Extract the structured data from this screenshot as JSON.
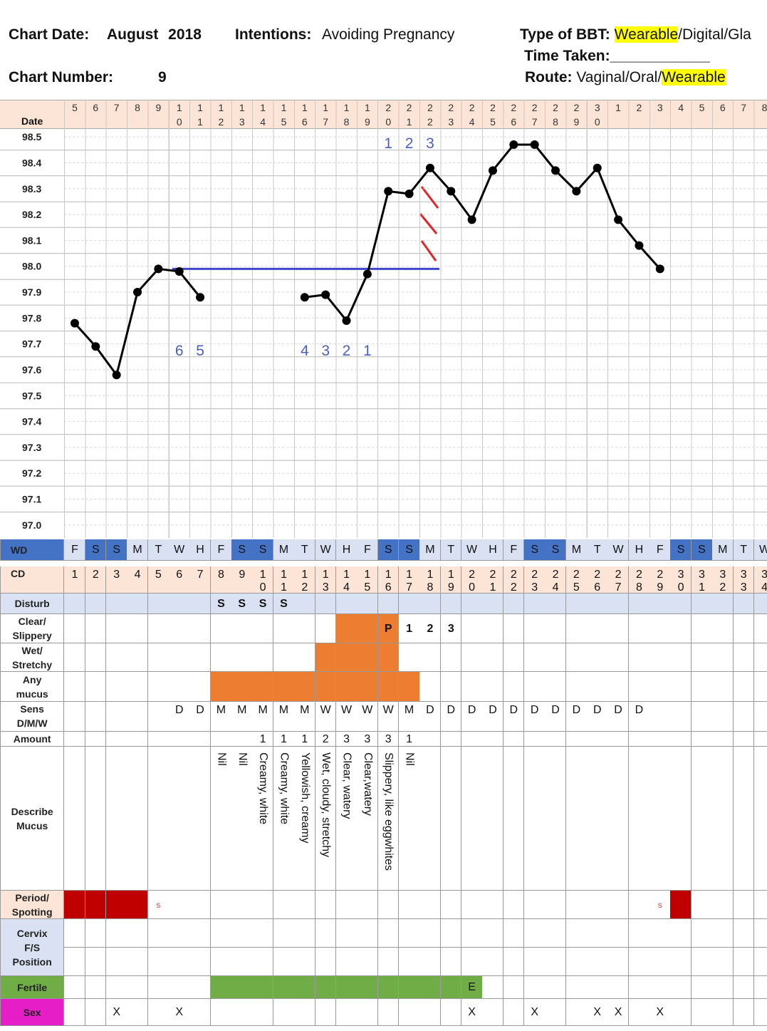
{
  "header": {
    "chart_date_label": "Chart Date:",
    "chart_date": "August 2018",
    "intentions_label": "Intentions:",
    "intentions": "Avoiding Pregnancy",
    "bbt_label": "Type of BBT:",
    "bbt_selected": "Wearable",
    "bbt_other": "/Digital/Gla",
    "time_taken": "Time Taken:____________",
    "chart_number_label": "Chart Number:",
    "chart_number": "9",
    "route_label": "Route:",
    "route_other": "Vaginal/Oral/",
    "route_selected": "Wearable",
    "highlight": "#ffff00"
  },
  "chart_data": {
    "type": "line",
    "x_label": "Date",
    "categories": [
      "5",
      "6",
      "7",
      "8",
      "9",
      "10",
      "11",
      "12",
      "13",
      "14",
      "15",
      "16",
      "17",
      "18",
      "19",
      "20",
      "21",
      "22",
      "23",
      "24",
      "25",
      "26",
      "27",
      "28",
      "29",
      "30",
      "1",
      "2",
      "3",
      "4",
      "5",
      "6",
      "7",
      "8"
    ],
    "series": [
      {
        "color": "#000000",
        "values": [
          97.78,
          97.69,
          97.58,
          97.9,
          97.99,
          97.98,
          97.88,
          null,
          null,
          null,
          null,
          97.88,
          97.89,
          97.79,
          97.97,
          98.29,
          98.28,
          98.38,
          98.29,
          98.18,
          98.37,
          98.47,
          98.47,
          98.37,
          98.29,
          98.38,
          98.18,
          98.08,
          97.99,
          null,
          null,
          null,
          null,
          null
        ]
      }
    ],
    "ylim": [
      96.95,
      98.55
    ],
    "yticks": [
      98.5,
      98.4,
      98.3,
      98.2,
      98.1,
      {
        "value": 98,
        "label": "98.0"
      },
      97.9,
      97.8,
      97.7,
      97.6,
      97.5,
      97.4,
      97.3,
      97.2,
      97.1,
      {
        "value": 97,
        "label": "97.0"
      }
    ],
    "grid": true,
    "coverline": {
      "value": 97.99,
      "color": "#3f48cc"
    },
    "low_count": [
      6,
      5,
      4,
      3,
      2,
      1
    ],
    "high_count": [
      1,
      2,
      3
    ],
    "count_color": "#4a5fc1"
  },
  "rows": [
    {
      "label": "WD",
      "label_fill": "#4472c4",
      "fill": "#d9e1f2",
      "cells": [
        "F",
        "S",
        "S",
        "M",
        "T",
        "W",
        "H",
        "F",
        "S",
        "S",
        "M",
        "T",
        "W",
        "H",
        "F",
        "S",
        "S",
        "M",
        "T",
        "W",
        "H",
        "F",
        "S",
        "S",
        "M",
        "T",
        "W",
        "H",
        "F",
        "S",
        "S",
        "M",
        "T",
        "W"
      ],
      "fills": [
        null,
        "#4472c4",
        "#4472c4",
        null,
        null,
        null,
        null,
        null,
        "#4472c4",
        "#4472c4",
        null,
        null,
        null,
        null,
        null,
        "#4472c4",
        "#4472c4",
        null,
        null,
        null,
        null,
        null,
        "#4472c4",
        "#4472c4",
        null,
        null,
        null,
        null,
        null,
        "#4472c4",
        "#4472c4",
        null,
        null,
        null
      ]
    },
    {
      "label": "CD",
      "label_fill": "#fce4d6",
      "fill": "#fce4d6",
      "cells": [
        1,
        2,
        3,
        4,
        5,
        6,
        7,
        8,
        9,
        10,
        11,
        12,
        13,
        14,
        15,
        16,
        17,
        18,
        19,
        20,
        21,
        22,
        23,
        24,
        25,
        26,
        27,
        28,
        29,
        30,
        31,
        32,
        33,
        34
      ]
    },
    {
      "label": "Disturb",
      "label_fill": "#d9e1f2",
      "fill": "#d9e1f2",
      "cells": [
        null,
        null,
        null,
        null,
        null,
        null,
        null,
        "S",
        "S",
        "S",
        "S",
        null,
        null,
        null,
        null,
        null,
        null,
        null,
        null,
        null,
        null,
        null,
        null,
        null,
        null,
        null,
        null,
        null,
        null,
        null,
        null,
        null,
        null,
        null
      ]
    },
    {
      "label": "Clear/\nSlippery",
      "cells": [
        null,
        null,
        null,
        null,
        null,
        null,
        null,
        null,
        null,
        null,
        null,
        null,
        null,
        null,
        null,
        "P",
        "1",
        "2",
        "3",
        null,
        null,
        null,
        null,
        null,
        null,
        null,
        null,
        null,
        null,
        null,
        null,
        null,
        null,
        null
      ],
      "fills": [
        null,
        null,
        null,
        null,
        null,
        null,
        null,
        null,
        null,
        null,
        null,
        null,
        null,
        "#ed7d31",
        "#ed7d31",
        "#ed7d31",
        null,
        null,
        null,
        null,
        null,
        null,
        null,
        null,
        null,
        null,
        null,
        null,
        null,
        null,
        null,
        null,
        null,
        null
      ]
    },
    {
      "label": "Wet/\nStretchy",
      "fills": [
        null,
        null,
        null,
        null,
        null,
        null,
        null,
        null,
        null,
        null,
        null,
        null,
        "#ed7d31",
        "#ed7d31",
        "#ed7d31",
        "#ed7d31",
        null,
        null,
        null,
        null,
        null,
        null,
        null,
        null,
        null,
        null,
        null,
        null,
        null,
        null,
        null,
        null,
        null,
        null
      ]
    },
    {
      "label": "Any\nmucus",
      "fills": [
        null,
        null,
        null,
        null,
        null,
        null,
        null,
        "#ed7d31",
        "#ed7d31",
        "#ed7d31",
        "#ed7d31",
        "#ed7d31",
        "#ed7d31",
        "#ed7d31",
        "#ed7d31",
        "#ed7d31",
        "#ed7d31",
        null,
        null,
        null,
        null,
        null,
        null,
        null,
        null,
        null,
        null,
        null,
        null,
        null,
        null,
        null,
        null,
        null
      ]
    },
    {
      "label": "Sens\nD/M/W",
      "cells": [
        null,
        null,
        null,
        null,
        null,
        "D",
        "D",
        "M",
        "M",
        "M",
        "M",
        "M",
        "W",
        "W",
        "W",
        "W",
        "M",
        "D",
        "D",
        "D",
        "D",
        "D",
        "D",
        "D",
        "D",
        "D",
        "D",
        "D",
        null,
        null,
        null,
        null,
        null,
        null
      ]
    },
    {
      "label": "Amount",
      "cells": [
        null,
        null,
        null,
        null,
        null,
        null,
        null,
        null,
        null,
        1,
        1,
        1,
        2,
        3,
        3,
        3,
        1,
        null,
        null,
        null,
        null,
        null,
        null,
        null,
        null,
        null,
        null,
        null,
        null,
        null,
        null,
        null,
        null,
        null
      ]
    },
    {
      "label": "Describe\nMucus",
      "cells": [
        null,
        null,
        null,
        null,
        null,
        null,
        null,
        "Nil",
        "Nil",
        "Creamy, white",
        "Creamy, white",
        "Yellowish, creamy",
        "Wet, cloudy, stretchy",
        "Clear, watery",
        "Clear,watery",
        "Slippery, like eggwhites",
        "Nil",
        null,
        null,
        null,
        null,
        null,
        null,
        null,
        null,
        null,
        null,
        null,
        null,
        null,
        null,
        null,
        null,
        null
      ]
    },
    {
      "label": "Period/\nSpotting",
      "label_fill": "#fce4d6",
      "color": "#c0504d",
      "cells": [
        null,
        null,
        null,
        null,
        "s",
        null,
        null,
        null,
        null,
        null,
        null,
        null,
        null,
        null,
        null,
        null,
        null,
        null,
        null,
        null,
        null,
        null,
        null,
        null,
        null,
        null,
        null,
        null,
        "s",
        null,
        null,
        null,
        null,
        null
      ],
      "fills": [
        "#c00000",
        "#c00000",
        "#c00000",
        "#c00000",
        null,
        null,
        null,
        null,
        null,
        null,
        null,
        null,
        null,
        null,
        null,
        null,
        null,
        null,
        null,
        null,
        null,
        null,
        null,
        null,
        null,
        null,
        null,
        null,
        null,
        "#c00000",
        null,
        null,
        null,
        null
      ]
    },
    {
      "label": "Cervix\nF/S\nPosition",
      "label_fill": "#d9e1f2"
    },
    {
      "label": "Fertile",
      "label_fill": "#70ad47",
      "cells": [
        null,
        null,
        null,
        null,
        null,
        null,
        null,
        null,
        null,
        null,
        null,
        null,
        null,
        null,
        null,
        null,
        null,
        null,
        null,
        "E",
        null,
        null,
        null,
        null,
        null,
        null,
        null,
        null,
        null,
        null,
        null,
        null,
        null,
        null
      ],
      "fills": [
        null,
        null,
        null,
        null,
        null,
        null,
        null,
        "#70ad47",
        "#70ad47",
        "#70ad47",
        "#70ad47",
        "#70ad47",
        "#70ad47",
        "#70ad47",
        "#70ad47",
        "#70ad47",
        "#70ad47",
        "#70ad47",
        "#70ad47",
        "#70ad47",
        null,
        null,
        null,
        null,
        null,
        null,
        null,
        null,
        null,
        null,
        null,
        null,
        null,
        null
      ]
    },
    {
      "label": "Sex",
      "label_fill": "#e61ec8",
      "cells": [
        null,
        null,
        "X",
        null,
        null,
        "X",
        null,
        null,
        null,
        null,
        null,
        null,
        null,
        null,
        null,
        null,
        null,
        null,
        null,
        "X",
        null,
        null,
        "X",
        null,
        null,
        "X",
        "X",
        null,
        "X",
        null,
        null,
        null,
        null,
        null
      ]
    }
  ]
}
